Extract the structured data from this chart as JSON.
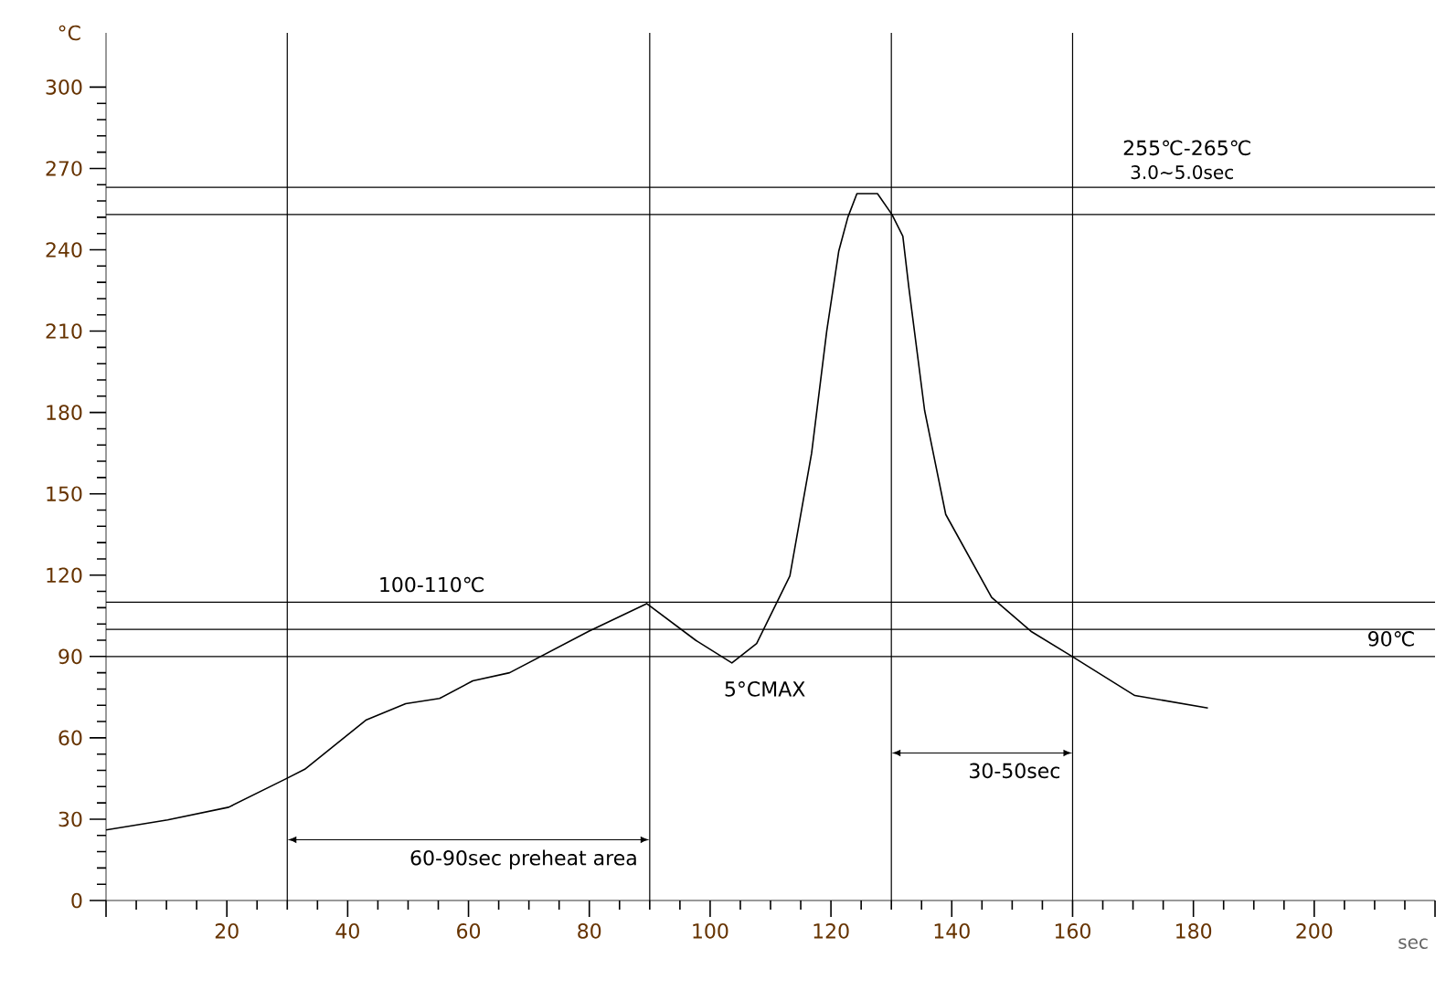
{
  "chart_data": {
    "type": "line",
    "xlabel": "sec",
    "ylabel": "°C",
    "xlim": [
      0,
      220
    ],
    "ylim": [
      0,
      320
    ],
    "xticks": [
      {
        "value": 0,
        "label": null
      },
      20,
      40,
      60,
      80,
      100,
      120,
      140,
      160,
      180,
      200,
      {
        "value": 220,
        "label": null
      }
    ],
    "yticks": [
      0,
      30,
      60,
      90,
      120,
      150,
      180,
      210,
      240,
      270,
      300
    ],
    "series": [
      {
        "color": "#000000",
        "x": [
          0,
          10.2,
          20.3,
          29.9,
          32.9,
          43,
          49.6,
          55.2,
          60.7,
          66.8,
          79.9,
          89.5,
          97.6,
          103.6,
          107.7,
          113.2,
          116.8,
          119.3,
          121.3,
          122.8,
          124.3,
          127.7,
          130.1,
          131.9,
          132.9,
          135.5,
          139,
          146.6,
          153.1,
          159.7,
          170.3,
          182.4
        ],
        "values": [
          26,
          29.7,
          34.4,
          45,
          48.4,
          66.5,
          72.6,
          74.5,
          81,
          84,
          99.3,
          109.5,
          96,
          87.6,
          94.8,
          119.7,
          165,
          210,
          239.6,
          252,
          260.7,
          260.7,
          253,
          245,
          226,
          180.8,
          142.4,
          111.8,
          99.3,
          90.3,
          75.6,
          71
        ]
      }
    ],
    "ref_lines": [
      {
        "axis": "y",
        "value": 263,
        "label": "255℃-265℃",
        "color": "#000000"
      },
      {
        "axis": "y",
        "value": 253,
        "color": "#000000"
      },
      {
        "axis": "y",
        "value": 110,
        "label": "100-110℃",
        "color": "#000000"
      },
      {
        "axis": "y",
        "value": 100,
        "color": "#000000"
      },
      {
        "axis": "y",
        "value": 90,
        "label": "90℃",
        "color": "#000000"
      },
      {
        "axis": "x",
        "value": 30,
        "color": "#000000"
      },
      {
        "axis": "x",
        "value": 90,
        "label": "60-90sec    preheat area",
        "color": "#000000"
      },
      {
        "axis": "x",
        "value": 130,
        "color": "#000000"
      },
      {
        "axis": "x",
        "value": 160,
        "label": "30-50sec",
        "color": "#000000"
      }
    ],
    "annotations": [
      "3.0~5.0sec",
      "5°CMAX"
    ]
  }
}
